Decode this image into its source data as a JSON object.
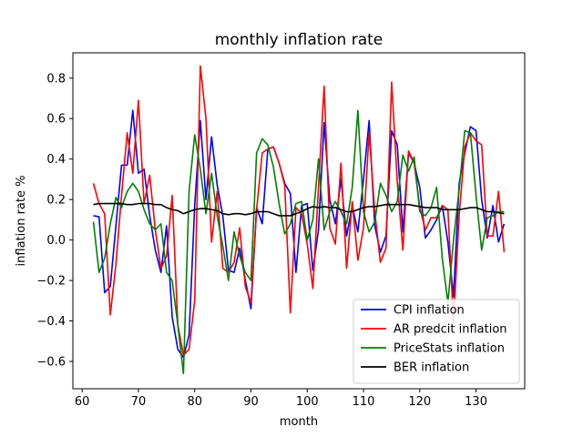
{
  "chart_data": {
    "type": "line",
    "title": "monthly inflation rate",
    "xlabel": "month",
    "ylabel": "inflation rate %",
    "xlim": [
      58.35,
      138.65
    ],
    "ylim": [
      -0.735,
      0.925
    ],
    "xticks": [
      60,
      70,
      80,
      90,
      100,
      110,
      120,
      130
    ],
    "yticks": [
      -0.6,
      -0.4,
      -0.2,
      0.0,
      0.2,
      0.4,
      0.6,
      0.8
    ],
    "ytick_labels": [
      "−0.6",
      "−0.4",
      "−0.2",
      "0.0",
      "0.2",
      "0.4",
      "0.6",
      "0.8"
    ],
    "grid": false,
    "legend_position": "lower-right",
    "series": [
      {
        "name": "CPI inflation",
        "color": "#0000ff",
        "x": [
          62,
          63,
          64,
          65,
          66,
          67,
          68,
          69,
          70,
          71,
          72,
          73,
          74,
          75,
          76,
          77,
          78,
          79,
          80,
          81,
          82,
          83,
          84,
          85,
          86,
          87,
          88,
          89,
          90,
          91,
          92,
          93,
          94,
          95,
          96,
          97,
          98,
          99,
          100,
          101,
          102,
          103,
          104,
          105,
          106,
          107,
          108,
          109,
          110,
          111,
          112,
          113,
          114,
          115,
          116,
          117,
          118,
          119,
          120,
          121,
          122,
          123,
          124,
          125,
          126,
          127,
          128,
          129,
          130,
          131,
          132,
          133,
          134,
          135
        ],
        "values": [
          0.12,
          0.115,
          -0.26,
          -0.23,
          0.07,
          0.37,
          0.37,
          0.64,
          0.33,
          0.35,
          0.12,
          -0.05,
          -0.16,
          0.07,
          -0.38,
          -0.54,
          -0.58,
          -0.47,
          0.17,
          0.59,
          0.2,
          0.51,
          0.27,
          0.12,
          -0.15,
          -0.16,
          -0.04,
          -0.2,
          -0.34,
          0.16,
          0.08,
          0.45,
          0.46,
          0.38,
          0.28,
          0.23,
          -0.16,
          0.17,
          0.18,
          -0.15,
          0.05,
          0.58,
          0.2,
          0.08,
          0.3,
          0.02,
          0.17,
          0.04,
          0.3,
          0.59,
          0.07,
          -0.06,
          0.02,
          0.54,
          0.47,
          0.04,
          0.43,
          0.38,
          0.26,
          0.01,
          0.05,
          0.1,
          0.17,
          -0.01,
          -0.28,
          0.28,
          0.43,
          0.56,
          0.54,
          0.2,
          0.01,
          0.17,
          -0.01,
          0.08
        ]
      },
      {
        "name": "AR predcit inflation",
        "color": "#ff0000",
        "x": [
          62,
          63,
          64,
          65,
          66,
          67,
          68,
          69,
          70,
          71,
          72,
          73,
          74,
          75,
          76,
          77,
          78,
          79,
          80,
          81,
          82,
          83,
          84,
          85,
          86,
          87,
          88,
          89,
          90,
          91,
          92,
          93,
          94,
          95,
          96,
          97,
          98,
          99,
          100,
          101,
          102,
          103,
          104,
          105,
          106,
          107,
          108,
          109,
          110,
          111,
          112,
          113,
          114,
          115,
          116,
          117,
          118,
          119,
          120,
          121,
          122,
          123,
          124,
          125,
          126,
          127,
          128,
          129,
          130,
          131,
          132,
          133,
          134,
          135
        ],
        "values": [
          0.28,
          0.18,
          0.13,
          -0.37,
          -0.12,
          0.22,
          0.53,
          0.33,
          0.69,
          0.18,
          0.32,
          0.05,
          -0.14,
          -0.08,
          0.22,
          -0.42,
          -0.57,
          -0.54,
          -0.3,
          0.86,
          0.6,
          -0.01,
          0.24,
          -0.14,
          -0.16,
          -0.11,
          0.06,
          -0.23,
          -0.31,
          0.15,
          0.43,
          0.45,
          0.46,
          0.38,
          0.27,
          -0.36,
          0.16,
          0.13,
          -0.02,
          -0.24,
          0.26,
          0.76,
          0.06,
          -0.02,
          0.38,
          -0.14,
          0.19,
          -0.1,
          0.06,
          0.53,
          0.14,
          -0.11,
          -0.04,
          0.78,
          0.29,
          -0.05,
          0.44,
          0.38,
          0.16,
          0.05,
          0.11,
          0.11,
          0.17,
          0.15,
          -0.41,
          0.12,
          0.46,
          0.53,
          0.49,
          0.47,
          0.02,
          0.02,
          0.24,
          -0.06
        ]
      },
      {
        "name": "PriceStats inflation",
        "color": "#008000",
        "x": [
          62,
          63,
          64,
          65,
          66,
          67,
          68,
          69,
          70,
          71,
          72,
          73,
          74,
          75,
          76,
          77,
          78,
          79,
          80,
          81,
          82,
          83,
          84,
          85,
          86,
          87,
          88,
          89,
          90,
          91,
          92,
          93,
          94,
          95,
          96,
          97,
          98,
          99,
          100,
          101,
          102,
          103,
          104,
          105,
          106,
          107,
          108,
          109,
          110,
          111,
          112,
          113,
          114,
          115,
          116,
          117,
          118,
          119,
          120,
          121,
          122,
          123,
          124,
          125,
          126,
          127,
          128,
          129,
          130,
          131,
          132,
          133,
          134,
          135
        ],
        "values": [
          0.09,
          -0.16,
          -0.09,
          0.08,
          0.21,
          0.16,
          0.24,
          0.28,
          0.24,
          0.15,
          0.08,
          0.05,
          0.08,
          -0.16,
          -0.2,
          -0.42,
          -0.66,
          0.24,
          0.52,
          0.35,
          0.13,
          0.33,
          0.12,
          -0.03,
          -0.2,
          0.04,
          -0.08,
          -0.16,
          -0.2,
          0.43,
          0.5,
          0.47,
          0.36,
          0.18,
          0.03,
          0.08,
          0.18,
          0.19,
          0.0,
          0.1,
          0.4,
          0.05,
          0.14,
          0.19,
          0.14,
          0.08,
          0.26,
          0.64,
          0.14,
          0.04,
          0.09,
          0.28,
          0.22,
          0.14,
          0.19,
          0.42,
          0.34,
          0.41,
          0.14,
          0.12,
          0.16,
          0.26,
          -0.09,
          -0.31,
          0.0,
          0.25,
          0.54,
          0.53,
          0.22,
          -0.05,
          0.11,
          0.12,
          0.14,
          0.14
        ]
      },
      {
        "name": "BER inflation",
        "color": "#000000",
        "x": [
          62,
          63,
          64,
          65,
          66,
          67,
          68,
          69,
          70,
          71,
          72,
          73,
          74,
          75,
          76,
          77,
          78,
          79,
          80,
          81,
          82,
          83,
          84,
          85,
          86,
          87,
          88,
          89,
          90,
          91,
          92,
          93,
          94,
          95,
          96,
          97,
          98,
          99,
          100,
          101,
          102,
          103,
          104,
          105,
          106,
          107,
          108,
          109,
          110,
          111,
          112,
          113,
          114,
          115,
          116,
          117,
          118,
          119,
          120,
          121,
          122,
          123,
          124,
          125,
          126,
          127,
          128,
          129,
          130,
          131,
          132,
          133,
          134,
          135
        ],
        "values": [
          0.175,
          0.18,
          0.18,
          0.18,
          0.18,
          0.18,
          0.175,
          0.175,
          0.18,
          0.18,
          0.18,
          0.175,
          0.175,
          0.16,
          0.15,
          0.145,
          0.13,
          0.14,
          0.15,
          0.155,
          0.155,
          0.15,
          0.145,
          0.13,
          0.125,
          0.13,
          0.13,
          0.125,
          0.13,
          0.14,
          0.14,
          0.14,
          0.13,
          0.12,
          0.12,
          0.12,
          0.13,
          0.14,
          0.155,
          0.165,
          0.16,
          0.165,
          0.16,
          0.16,
          0.15,
          0.14,
          0.14,
          0.15,
          0.16,
          0.165,
          0.165,
          0.17,
          0.175,
          0.175,
          0.175,
          0.175,
          0.175,
          0.17,
          0.165,
          0.16,
          0.16,
          0.16,
          0.15,
          0.15,
          0.15,
          0.15,
          0.155,
          0.16,
          0.16,
          0.15,
          0.14,
          0.14,
          0.135,
          0.13
        ]
      }
    ]
  }
}
